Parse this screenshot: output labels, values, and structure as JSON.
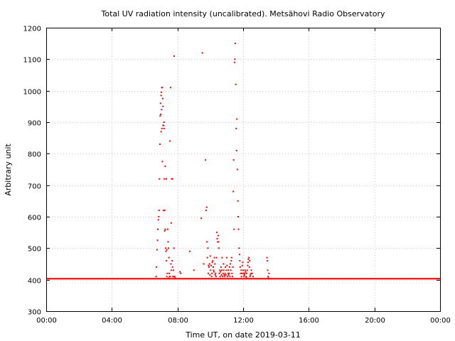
{
  "chart_data": {
    "type": "scatter",
    "title": "Total UV radiation intensity (uncalibrated). Metsähovi Radio Observatory",
    "xlabel": "Time UT, on date 2019-03-11",
    "ylabel": "Arbitrary unit",
    "x_unit": "hours UT",
    "xlim": [
      0,
      24
    ],
    "ylim": [
      300,
      1200
    ],
    "x_ticks": [
      0,
      4,
      8,
      12,
      16,
      20,
      24
    ],
    "x_tick_labels": [
      "00:00",
      "04:00",
      "08:00",
      "12:00",
      "16:00",
      "20:00",
      "00:00"
    ],
    "y_ticks": [
      300,
      400,
      500,
      600,
      700,
      800,
      900,
      1000,
      1100,
      1200
    ],
    "y_tick_labels": [
      "300",
      "400",
      "500",
      "600",
      "700",
      "800",
      "900",
      "1000",
      "1100",
      "1200"
    ],
    "grid": true,
    "marker_color": "#ff0000",
    "baseline": {
      "value": 403,
      "from": 0,
      "to": 24
    },
    "series": [
      {
        "x": [
          6.7,
          6.72,
          6.75,
          6.78,
          6.8,
          6.83,
          6.86,
          6.88,
          6.9,
          6.93,
          6.95,
          6.97,
          7.0,
          7.02,
          7.05,
          7.08,
          7.1,
          7.12,
          7.15,
          7.18,
          7.2,
          7.22,
          7.25,
          7.28,
          7.3,
          7.33,
          7.35,
          7.38,
          7.4,
          7.43,
          7.45,
          7.48,
          7.5,
          7.52,
          7.55,
          7.58,
          7.6,
          7.62,
          7.65,
          7.68,
          7.7,
          7.72,
          7.75,
          7.78,
          7.8,
          7.83,
          7.85,
          7.0,
          7.05,
          7.12,
          7.18,
          7.25,
          7.32,
          6.98,
          7.03,
          7.08,
          7.15,
          7.22,
          7.35,
          7.45,
          7.55,
          7.62,
          7.7,
          7.77,
          8.15,
          8.2,
          8.75,
          9.0,
          9.45,
          9.52,
          9.6,
          9.7,
          9.75,
          9.78,
          9.8,
          9.82,
          9.85,
          9.88,
          9.9,
          9.92,
          9.95,
          9.98,
          10.0,
          10.02,
          10.05,
          10.08,
          10.1,
          10.12,
          10.15,
          10.18,
          10.2,
          10.22,
          10.25,
          10.28,
          10.3,
          10.32,
          10.35,
          10.38,
          10.4,
          10.42,
          10.45,
          10.48,
          10.5,
          10.52,
          10.55,
          10.58,
          10.6,
          10.62,
          10.65,
          10.68,
          10.7,
          10.72,
          10.75,
          10.78,
          10.8,
          10.82,
          10.85,
          10.88,
          10.9,
          10.92,
          10.95,
          10.98,
          11.0,
          11.02,
          11.05,
          11.08,
          11.1,
          11.12,
          11.15,
          11.18,
          11.2,
          11.22,
          11.25,
          11.28,
          11.3,
          11.32,
          11.35,
          11.38,
          11.4,
          11.42,
          11.45,
          11.48,
          11.5,
          11.52,
          11.55,
          11.58,
          11.6,
          11.62,
          11.65,
          11.68,
          11.7,
          11.72,
          11.75,
          11.78,
          11.8,
          11.82,
          11.85,
          11.88,
          11.9,
          11.92,
          11.95,
          11.98,
          12.0,
          12.02,
          12.05,
          12.08,
          12.1,
          12.12,
          12.15,
          12.18,
          12.2,
          12.22,
          12.25,
          12.28,
          12.3,
          12.32,
          12.35,
          12.38,
          12.4,
          12.42,
          12.45,
          12.48,
          12.5,
          12.55,
          12.6,
          13.45,
          13.48,
          13.5,
          13.52,
          13.55,
          13.58
        ],
        "y": [
          410,
          440,
          495,
          525,
          560,
          590,
          600,
          620,
          720,
          830,
          920,
          960,
          985,
          995,
          1010,
          1010,
          975,
          950,
          890,
          880,
          720,
          620,
          560,
          500,
          490,
          460,
          410,
          420,
          560,
          520,
          500,
          470,
          420,
          410,
          840,
          1010,
          450,
          580,
          720,
          460,
          440,
          410,
          430,
          500,
          1110,
          410,
          405,
          870,
          880,
          890,
          900,
          760,
          720,
          925,
          940,
          775,
          620,
          555,
          495,
          405,
          410,
          430,
          720,
          410,
          425,
          420,
          490,
          430,
          595,
          1120,
          450,
          780,
          620,
          630,
          520,
          470,
          500,
          420,
          445,
          440,
          450,
          415,
          475,
          430,
          445,
          410,
          420,
          455,
          460,
          440,
          430,
          425,
          470,
          450,
          415,
          420,
          410,
          470,
          550,
          530,
          520,
          540,
          520,
          500,
          420,
          430,
          410,
          425,
          440,
          415,
          430,
          470,
          410,
          420,
          450,
          430,
          415,
          410,
          420,
          440,
          415,
          430,
          470,
          445,
          410,
          420,
          430,
          415,
          420,
          440,
          410,
          450,
          430,
          460,
          470,
          420,
          410,
          440,
          680,
          780,
          560,
          1090,
          1100,
          1150,
          1020,
          880,
          810,
          910,
          750,
          650,
          600,
          560,
          500,
          480,
          460,
          440,
          420,
          430,
          410,
          420,
          445,
          455,
          430,
          420,
          410,
          415,
          420,
          430,
          425,
          410,
          405,
          420,
          430,
          445,
          455,
          465,
          470,
          440,
          460,
          410,
          415,
          420,
          430,
          420,
          410,
          470,
          460,
          430,
          410,
          405,
          420
        ]
      }
    ]
  }
}
